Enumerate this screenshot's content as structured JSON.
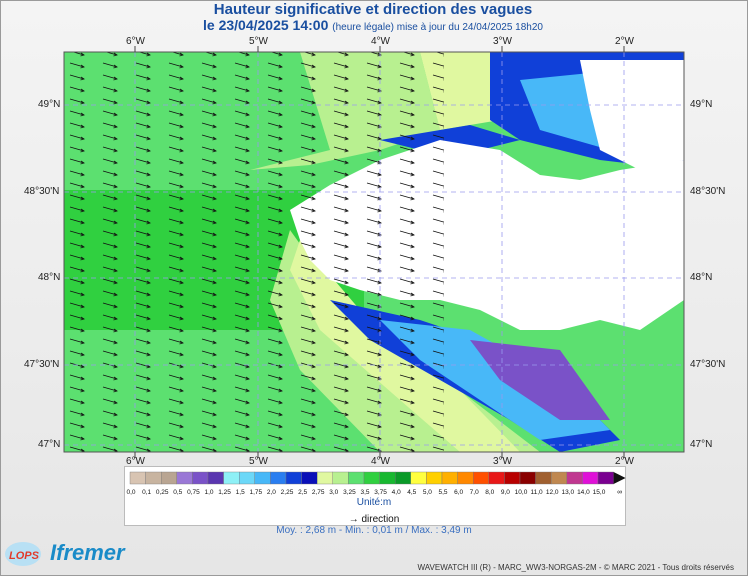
{
  "header": {
    "title": "Hauteur significative et direction des vagues",
    "date": "le 23/04/2025 14:00",
    "update_note": "(heure légale) mise à jour du 24/04/2025 18h20"
  },
  "map": {
    "lon_labels": [
      "6°W",
      "5°W",
      "4°W",
      "3°W",
      "2°W"
    ],
    "lat_labels": [
      "49°N",
      "48°30'N",
      "48°N",
      "47°30'N",
      "47°N"
    ]
  },
  "legend": {
    "ticks": [
      "0,0",
      "0,1",
      "0,25",
      "0,5",
      "0,75",
      "1,0",
      "1,25",
      "1,5",
      "1,75",
      "2,0",
      "2,25",
      "2,5",
      "2,75",
      "3,0",
      "3,25",
      "3,5",
      "3,75",
      "4,0",
      "4,5",
      "5,0",
      "5,5",
      "6,0",
      "7,0",
      "8,0",
      "9,0",
      "10,0",
      "11,0",
      "12,0",
      "13,0",
      "14,0",
      "15,0"
    ],
    "colors": [
      "#d8c4b2",
      "#c8b4a0",
      "#b9a592",
      "#9a78d6",
      "#7a52c8",
      "#5a36b0",
      "#8ef0f6",
      "#6cd8f8",
      "#48b8f8",
      "#2a7ef0",
      "#1040d8",
      "#0a10b8",
      "#e0f8a0",
      "#b8f090",
      "#5ce070",
      "#30d040",
      "#18b830",
      "#0a9a28",
      "#ffff40",
      "#ffd000",
      "#ffb000",
      "#ff8800",
      "#ff5000",
      "#e81818",
      "#b80000",
      "#8a0000",
      "#a06030",
      "#c08850",
      "#c03890",
      "#e010d8",
      "#7a0090"
    ],
    "over_symbol": "∞",
    "unit": "Unité:m",
    "direction_label": "direction"
  },
  "stats": "Moy. : 2,68 m   -   Min. : 0,01 m / Max. : 3,49 m",
  "credit": "WAVEWATCH III (R) - MARC_WW3-NORGAS-2M - © MARC 2021 - Tous droits réservés",
  "logos": {
    "lops": "LOPS",
    "ifremer": "Ifremer"
  }
}
